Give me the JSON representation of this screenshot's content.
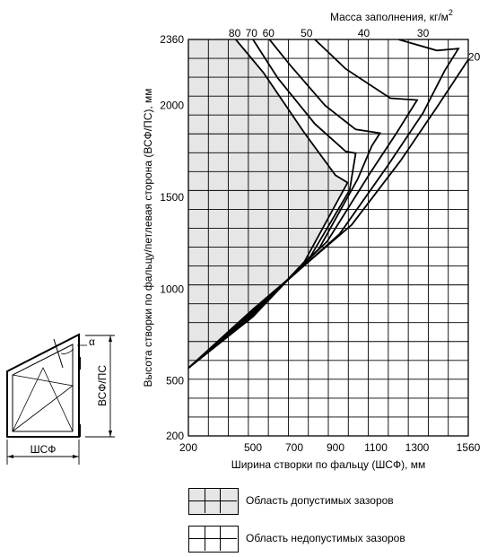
{
  "chart_data": {
    "type": "line",
    "title": "Масса заполнения, кг/м",
    "title_superscript": "2",
    "xlabel": "Ширина створки по фальцу (ШСФ), мм",
    "ylabel": "Высота створки по фальцу/петлевая сторона (ВСФ/ПС), мм",
    "xlim": [
      200,
      1560
    ],
    "ylim": [
      200,
      2360
    ],
    "x_ticks": [
      "200",
      "500",
      "700",
      "900",
      "1100",
      "1300",
      "1560"
    ],
    "y_ticks": [
      "200",
      "500",
      "1000",
      "1500",
      "2000",
      "2360"
    ],
    "grid": true,
    "series": [
      {
        "name": "80",
        "points": [
          [
            200,
            570
          ],
          [
            500,
            850
          ],
          [
            750,
            1150
          ],
          [
            920,
            1500
          ],
          [
            960,
            1580
          ],
          [
            900,
            1620
          ],
          [
            750,
            1850
          ],
          [
            550,
            2180
          ],
          [
            420,
            2360
          ]
        ]
      },
      {
        "name": "70",
        "points": [
          [
            200,
            570
          ],
          [
            500,
            850
          ],
          [
            780,
            1180
          ],
          [
            970,
            1540
          ],
          [
            1000,
            1740
          ],
          [
            950,
            1750
          ],
          [
            800,
            1900
          ],
          [
            620,
            2150
          ],
          [
            500,
            2360
          ]
        ]
      },
      {
        "name": "60",
        "points": [
          [
            200,
            570
          ],
          [
            500,
            860
          ],
          [
            820,
            1220
          ],
          [
            1010,
            1600
          ],
          [
            1080,
            1780
          ],
          [
            1120,
            1850
          ],
          [
            1000,
            1870
          ],
          [
            850,
            2000
          ],
          [
            680,
            2220
          ],
          [
            580,
            2360
          ]
        ]
      },
      {
        "name": "50",
        "points": [
          [
            200,
            570
          ],
          [
            500,
            870
          ],
          [
            860,
            1260
          ],
          [
            1070,
            1630
          ],
          [
            1200,
            1850
          ],
          [
            1300,
            2030
          ],
          [
            1170,
            2040
          ],
          [
            950,
            2200
          ],
          [
            800,
            2360
          ]
        ]
      },
      {
        "name": "40",
        "points": [
          [
            200,
            570
          ],
          [
            500,
            880
          ],
          [
            920,
            1300
          ],
          [
            1150,
            1660
          ],
          [
            1330,
            1960
          ],
          [
            1440,
            2190
          ],
          [
            1510,
            2310
          ],
          [
            1400,
            2300
          ],
          [
            1210,
            2360
          ]
        ]
      },
      {
        "name": "30",
        "points": [
          [
            200,
            570
          ],
          [
            500,
            890
          ],
          [
            980,
            1350
          ],
          [
            1220,
            1700
          ],
          [
            1400,
            1990
          ],
          [
            1560,
            2250
          ]
        ]
      }
    ],
    "curve_labels": [
      {
        "text": "80",
        "x": 415,
        "y": 2395
      },
      {
        "text": "70",
        "x": 493,
        "y": 2395
      },
      {
        "text": "60",
        "x": 575,
        "y": 2395
      },
      {
        "text": "50",
        "x": 760,
        "y": 2395
      },
      {
        "text": "40",
        "x": 1040,
        "y": 2395
      },
      {
        "text": "30",
        "x": 1330,
        "y": 2395
      },
      {
        "text": "20",
        "x": 1590,
        "y": 2265
      }
    ],
    "permissible_region": [
      [
        200,
        570
      ],
      [
        500,
        850
      ],
      [
        750,
        1150
      ],
      [
        920,
        1500
      ],
      [
        960,
        1580
      ],
      [
        900,
        1620
      ],
      [
        750,
        1850
      ],
      [
        550,
        2180
      ],
      [
        420,
        2360
      ],
      [
        200,
        2360
      ]
    ]
  },
  "legend": {
    "permissible": {
      "text": "Область допустимых зазоров",
      "fill": "#e6e6e6"
    },
    "impermissible": {
      "text": "Область недопустимых зазоров",
      "fill": "#ffffff"
    }
  },
  "sash_diagram": {
    "alpha": "α",
    "height_label": "ВСФ/ПС",
    "width_label": "ШСФ"
  }
}
